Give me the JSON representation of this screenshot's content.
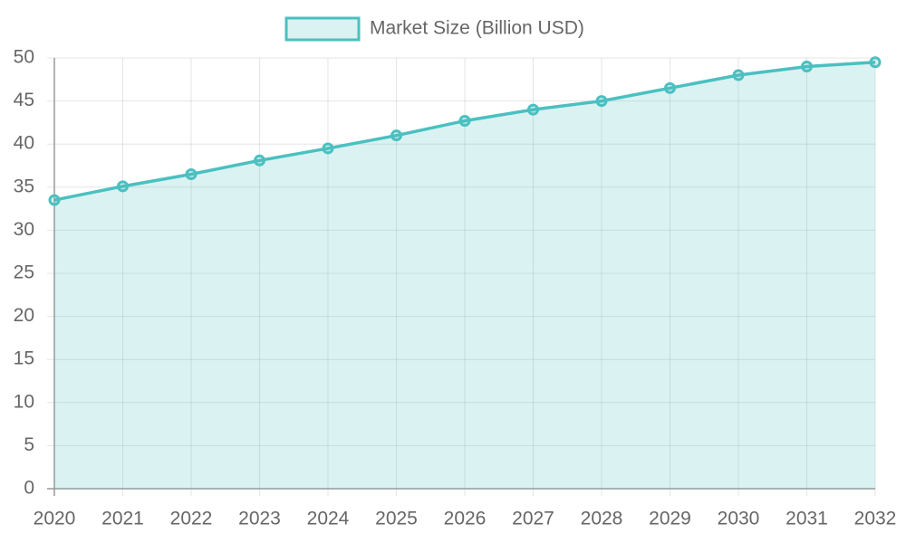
{
  "chart_data": {
    "type": "line",
    "categories": [
      "2020",
      "2021",
      "2022",
      "2023",
      "2024",
      "2025",
      "2026",
      "2027",
      "2028",
      "2029",
      "2030",
      "2031",
      "2032"
    ],
    "series": [
      {
        "name": "Market Size (Billion USD)",
        "color": "#4bc0c0",
        "fill": "rgba(75,192,192,0.2)",
        "values": [
          33.5,
          35.1,
          36.5,
          38.1,
          39.5,
          41.0,
          42.7,
          44.0,
          45.0,
          46.5,
          48.0,
          49.0,
          49.5
        ]
      }
    ],
    "ylim": [
      0,
      50
    ],
    "yticks": [
      0,
      5,
      10,
      15,
      20,
      25,
      30,
      35,
      40,
      45,
      50
    ],
    "grid": true,
    "legend": "top"
  }
}
